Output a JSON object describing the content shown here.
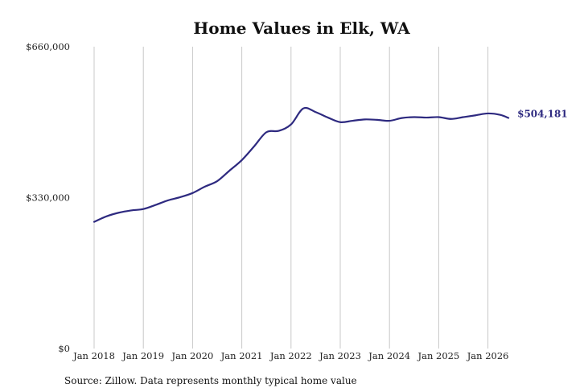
{
  "chart_data": {
    "type": "line",
    "title": "Home Values in Elk, WA",
    "xlabel": "",
    "ylabel": "",
    "x_ticks": [
      "Jan 2018",
      "Jan 2019",
      "Jan 2020",
      "Jan 2021",
      "Jan 2022",
      "Jan 2023",
      "Jan 2024",
      "Jan 2025",
      "Jan 2026"
    ],
    "y_ticks": [
      {
        "value": 0,
        "label": "$0"
      },
      {
        "value": 330000,
        "label": "$330,000"
      },
      {
        "value": 660000,
        "label": "$660,000"
      }
    ],
    "ylim": [
      0,
      660000
    ],
    "xlim": [
      "2018-01",
      "2026-07"
    ],
    "grid": "vertical",
    "series": [
      {
        "color": "#2e2a80",
        "x": [
          "2018-01",
          "2018-04",
          "2018-07",
          "2018-10",
          "2019-01",
          "2019-04",
          "2019-07",
          "2019-10",
          "2020-01",
          "2020-04",
          "2020-07",
          "2020-10",
          "2021-01",
          "2021-04",
          "2021-07",
          "2021-10",
          "2022-01",
          "2022-04",
          "2022-07",
          "2022-10",
          "2023-01",
          "2023-04",
          "2023-07",
          "2023-10",
          "2024-01",
          "2024-04",
          "2024-07",
          "2024-10",
          "2025-01",
          "2025-04",
          "2025-07",
          "2025-10",
          "2026-01",
          "2026-04",
          "2026-06"
        ],
        "values": [
          277000,
          289000,
          297000,
          302000,
          305000,
          314000,
          324000,
          331000,
          340000,
          354000,
          366000,
          389000,
          412000,
          442000,
          473000,
          476000,
          490000,
          525000,
          517000,
          505000,
          495000,
          498000,
          501000,
          500000,
          498000,
          504000,
          506000,
          505000,
          506000,
          502000,
          506000,
          510000,
          514000,
          511000,
          504181
        ]
      }
    ],
    "end_label": "$504,181",
    "source": "Source: Zillow. Data represents monthly typical home value"
  }
}
